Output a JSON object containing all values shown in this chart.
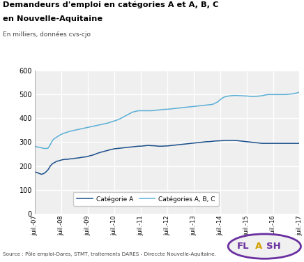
{
  "title_line1": "Demandeurs d'emploi en catégories A et A, B, C",
  "title_line2": "en Nouvelle-Aquitaine",
  "subtitle": "En milliers, données cvs-cjo",
  "source": "Source : Pôle emploi-Dares, STMT, traitements DARES - Direccte Nouvelle-Aquitaine.",
  "xlim": [
    0,
    120
  ],
  "ylim": [
    0,
    600
  ],
  "yticks": [
    0,
    100,
    200,
    300,
    400,
    500,
    600
  ],
  "xtick_labels": [
    "juil.-07",
    "juil.-08",
    "juil.-09",
    "juil.-10",
    "juil.-11",
    "juil.-12",
    "juil.-13",
    "juil.-14",
    "juil.-15",
    "juil.-16",
    "juil.-17"
  ],
  "xtick_positions": [
    0,
    12,
    24,
    36,
    48,
    60,
    72,
    84,
    96,
    108,
    120
  ],
  "color_A": "#1a4f8a",
  "color_ABC": "#5bafd6",
  "legend_A": "Catégorie A",
  "legend_ABC": "Catégories A, B, C",
  "cat_A": [
    175,
    172,
    168,
    165,
    168,
    175,
    185,
    200,
    210,
    215,
    220,
    222,
    225,
    227,
    228,
    228,
    230,
    230,
    232,
    233,
    234,
    236,
    237,
    238,
    240,
    243,
    245,
    248,
    252,
    255,
    258,
    260,
    263,
    265,
    268,
    270,
    272,
    273,
    274,
    275,
    276,
    277,
    278,
    279,
    280,
    281,
    282,
    283,
    283,
    284,
    285,
    286,
    286,
    285,
    285,
    284,
    283,
    283,
    283,
    284,
    284,
    285,
    286,
    287,
    288,
    289,
    290,
    291,
    292,
    293,
    294,
    295,
    296,
    297,
    298,
    299,
    300,
    301,
    302,
    302,
    303,
    304,
    305,
    305,
    306,
    306,
    307,
    307,
    307,
    307,
    307,
    307,
    306,
    305,
    304,
    303,
    302,
    301,
    300,
    299,
    298,
    297,
    296,
    295,
    295,
    295,
    295,
    295,
    295,
    295,
    295,
    295,
    295,
    295,
    295,
    295,
    295,
    295,
    295,
    295,
    295
  ],
  "cat_ABC": [
    283,
    280,
    278,
    276,
    274,
    273,
    275,
    290,
    308,
    316,
    322,
    328,
    333,
    337,
    340,
    343,
    346,
    348,
    350,
    352,
    354,
    356,
    358,
    360,
    362,
    364,
    366,
    368,
    370,
    372,
    374,
    376,
    378,
    380,
    383,
    386,
    389,
    392,
    396,
    400,
    405,
    410,
    415,
    420,
    425,
    428,
    430,
    432,
    432,
    432,
    432,
    432,
    432,
    432,
    433,
    434,
    435,
    436,
    437,
    438,
    438,
    439,
    440,
    441,
    442,
    443,
    444,
    445,
    446,
    447,
    448,
    449,
    450,
    451,
    452,
    453,
    454,
    455,
    456,
    457,
    458,
    460,
    465,
    470,
    478,
    485,
    490,
    492,
    494,
    495,
    496,
    496,
    496,
    495,
    495,
    494,
    494,
    493,
    492,
    492,
    492,
    493,
    494,
    495,
    497,
    499,
    500,
    500,
    500,
    500,
    500,
    500,
    500,
    500,
    500,
    501,
    502,
    503,
    505,
    507,
    510
  ],
  "fig_width": 4.36,
  "fig_height": 3.75,
  "dpi": 100
}
